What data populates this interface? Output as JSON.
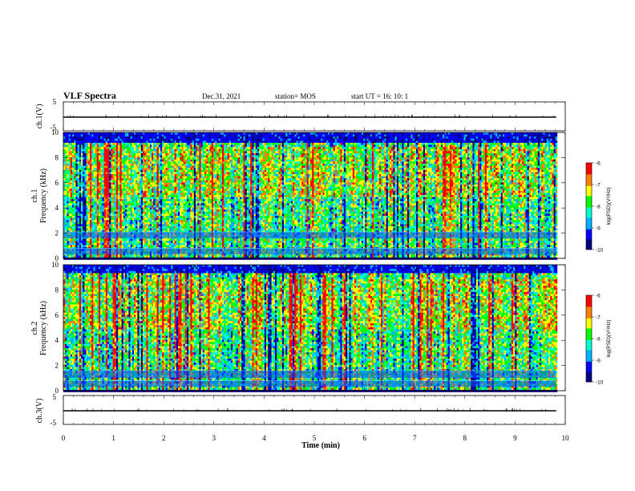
{
  "header": {
    "title": "VLF Spectra",
    "date": "Dec.31, 2021",
    "station": "station= MOS",
    "start": "start  UT =   16: 10: 1"
  },
  "chart_data": [
    {
      "type": "line",
      "panel": "ch1_waveform",
      "ylabel": "ch.1(V)",
      "ylim": [
        -5,
        5
      ],
      "yticks": [
        "5",
        "-5"
      ],
      "xlim": [
        0,
        10
      ],
      "x_end": 9.82,
      "baseline": 0,
      "line_color": "#000000"
    },
    {
      "type": "heatmap",
      "panel": "ch1_spectrogram",
      "ylabel_top": "ch.1",
      "ylabel": "Frequency (kHz)",
      "ylim": [
        0,
        10
      ],
      "yticks": [
        "0",
        "2",
        "4",
        "6",
        "8",
        "10"
      ],
      "xlim": [
        0,
        10
      ],
      "x_end": 9.82,
      "colorbar": {
        "label": "log(PSD)(V²/Hz)",
        "range": [
          -10,
          -6
        ],
        "ticks": [
          "-6",
          "-7",
          "-8",
          "-9",
          "-10"
        ]
      },
      "bands_khz": [
        [
          0.3,
          0.8
        ],
        [
          1.6,
          2.1
        ]
      ],
      "dark_floor_khz": [
        0,
        0.2
      ],
      "dark_top_khz": [
        9.3,
        10
      ]
    },
    {
      "type": "heatmap",
      "panel": "ch2_spectrogram",
      "ylabel_top": "ch.2",
      "ylabel": "Frequency (kHz)",
      "ylim": [
        0,
        10
      ],
      "yticks": [
        "0",
        "2",
        "4",
        "6",
        "8",
        "10"
      ],
      "xlim": [
        0,
        10
      ],
      "x_end": 9.82,
      "colorbar": {
        "label": "log(PSD)(V²/Hz)",
        "range": [
          -10,
          -6
        ],
        "ticks": [
          "-6",
          "-7",
          "-8",
          "-9",
          "-10"
        ]
      },
      "bands_khz": [
        [
          0.3,
          0.8
        ],
        [
          1.0,
          1.6
        ]
      ],
      "dark_floor_khz": [
        0,
        0.2
      ],
      "dark_top_khz": [
        9.4,
        10
      ]
    },
    {
      "type": "line",
      "panel": "ch3_waveform",
      "ylabel": "ch.3(V)",
      "ylim": [
        -5,
        5
      ],
      "yticks": [
        "5",
        "-5"
      ],
      "xlim": [
        0,
        10
      ],
      "x_end": 9.82,
      "baseline": 0,
      "line_color": "#000000"
    }
  ],
  "xaxis": {
    "label": "Time (min)",
    "ticks": [
      "0",
      "1",
      "2",
      "3",
      "4",
      "5",
      "6",
      "7",
      "8",
      "9",
      "10"
    ]
  },
  "colormap": [
    "#000080",
    "#0000ff",
    "#00b0ff",
    "#00ffd0",
    "#00ff00",
    "#ffff00",
    "#ff8000",
    "#ff0000",
    "#ffffff"
  ]
}
